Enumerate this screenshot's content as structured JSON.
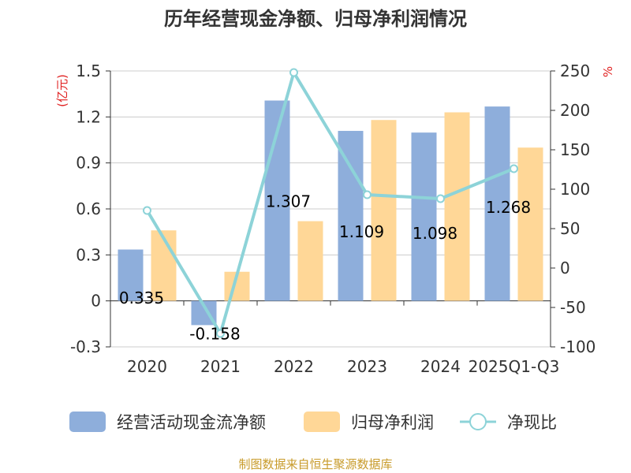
{
  "chart_data": {
    "type": "bar",
    "title": "历年经营现金净额、归母净利润情况",
    "categories": [
      "2020",
      "2021",
      "2022",
      "2023",
      "2024",
      "2025Q1-Q3"
    ],
    "series": [
      {
        "name": "经营活动现金流净额",
        "type": "bar",
        "axis": "left",
        "color": "#8eaedb",
        "values": [
          0.335,
          -0.158,
          1.307,
          1.109,
          1.098,
          1.268
        ],
        "labels": [
          "0.335",
          "-0.158",
          "1.307",
          "1.109",
          "1.098",
          "1.268"
        ]
      },
      {
        "name": "归母净利润",
        "type": "bar",
        "axis": "left",
        "color": "#ffd797",
        "values": [
          0.46,
          0.19,
          0.52,
          1.18,
          1.23,
          1.0
        ]
      },
      {
        "name": "净现比",
        "type": "line",
        "axis": "right",
        "color": "#8dd3d8",
        "values": [
          73,
          -83,
          248,
          93,
          88,
          126
        ]
      }
    ],
    "y_left": {
      "unit": "(亿元)",
      "ylim": [
        -0.3,
        1.5
      ],
      "ticks": [
        "1.5",
        "1.2",
        "0.9",
        "0.6",
        "0.3",
        "0",
        "-0.3"
      ]
    },
    "y_right": {
      "unit": "%",
      "ylim": [
        -100,
        250
      ],
      "ticks": [
        "250",
        "200",
        "150",
        "100",
        "50",
        "0",
        "-50",
        "-100"
      ]
    },
    "grid": true,
    "legend_position": "bottom"
  },
  "source": "制图数据来自恒生聚源数据库"
}
